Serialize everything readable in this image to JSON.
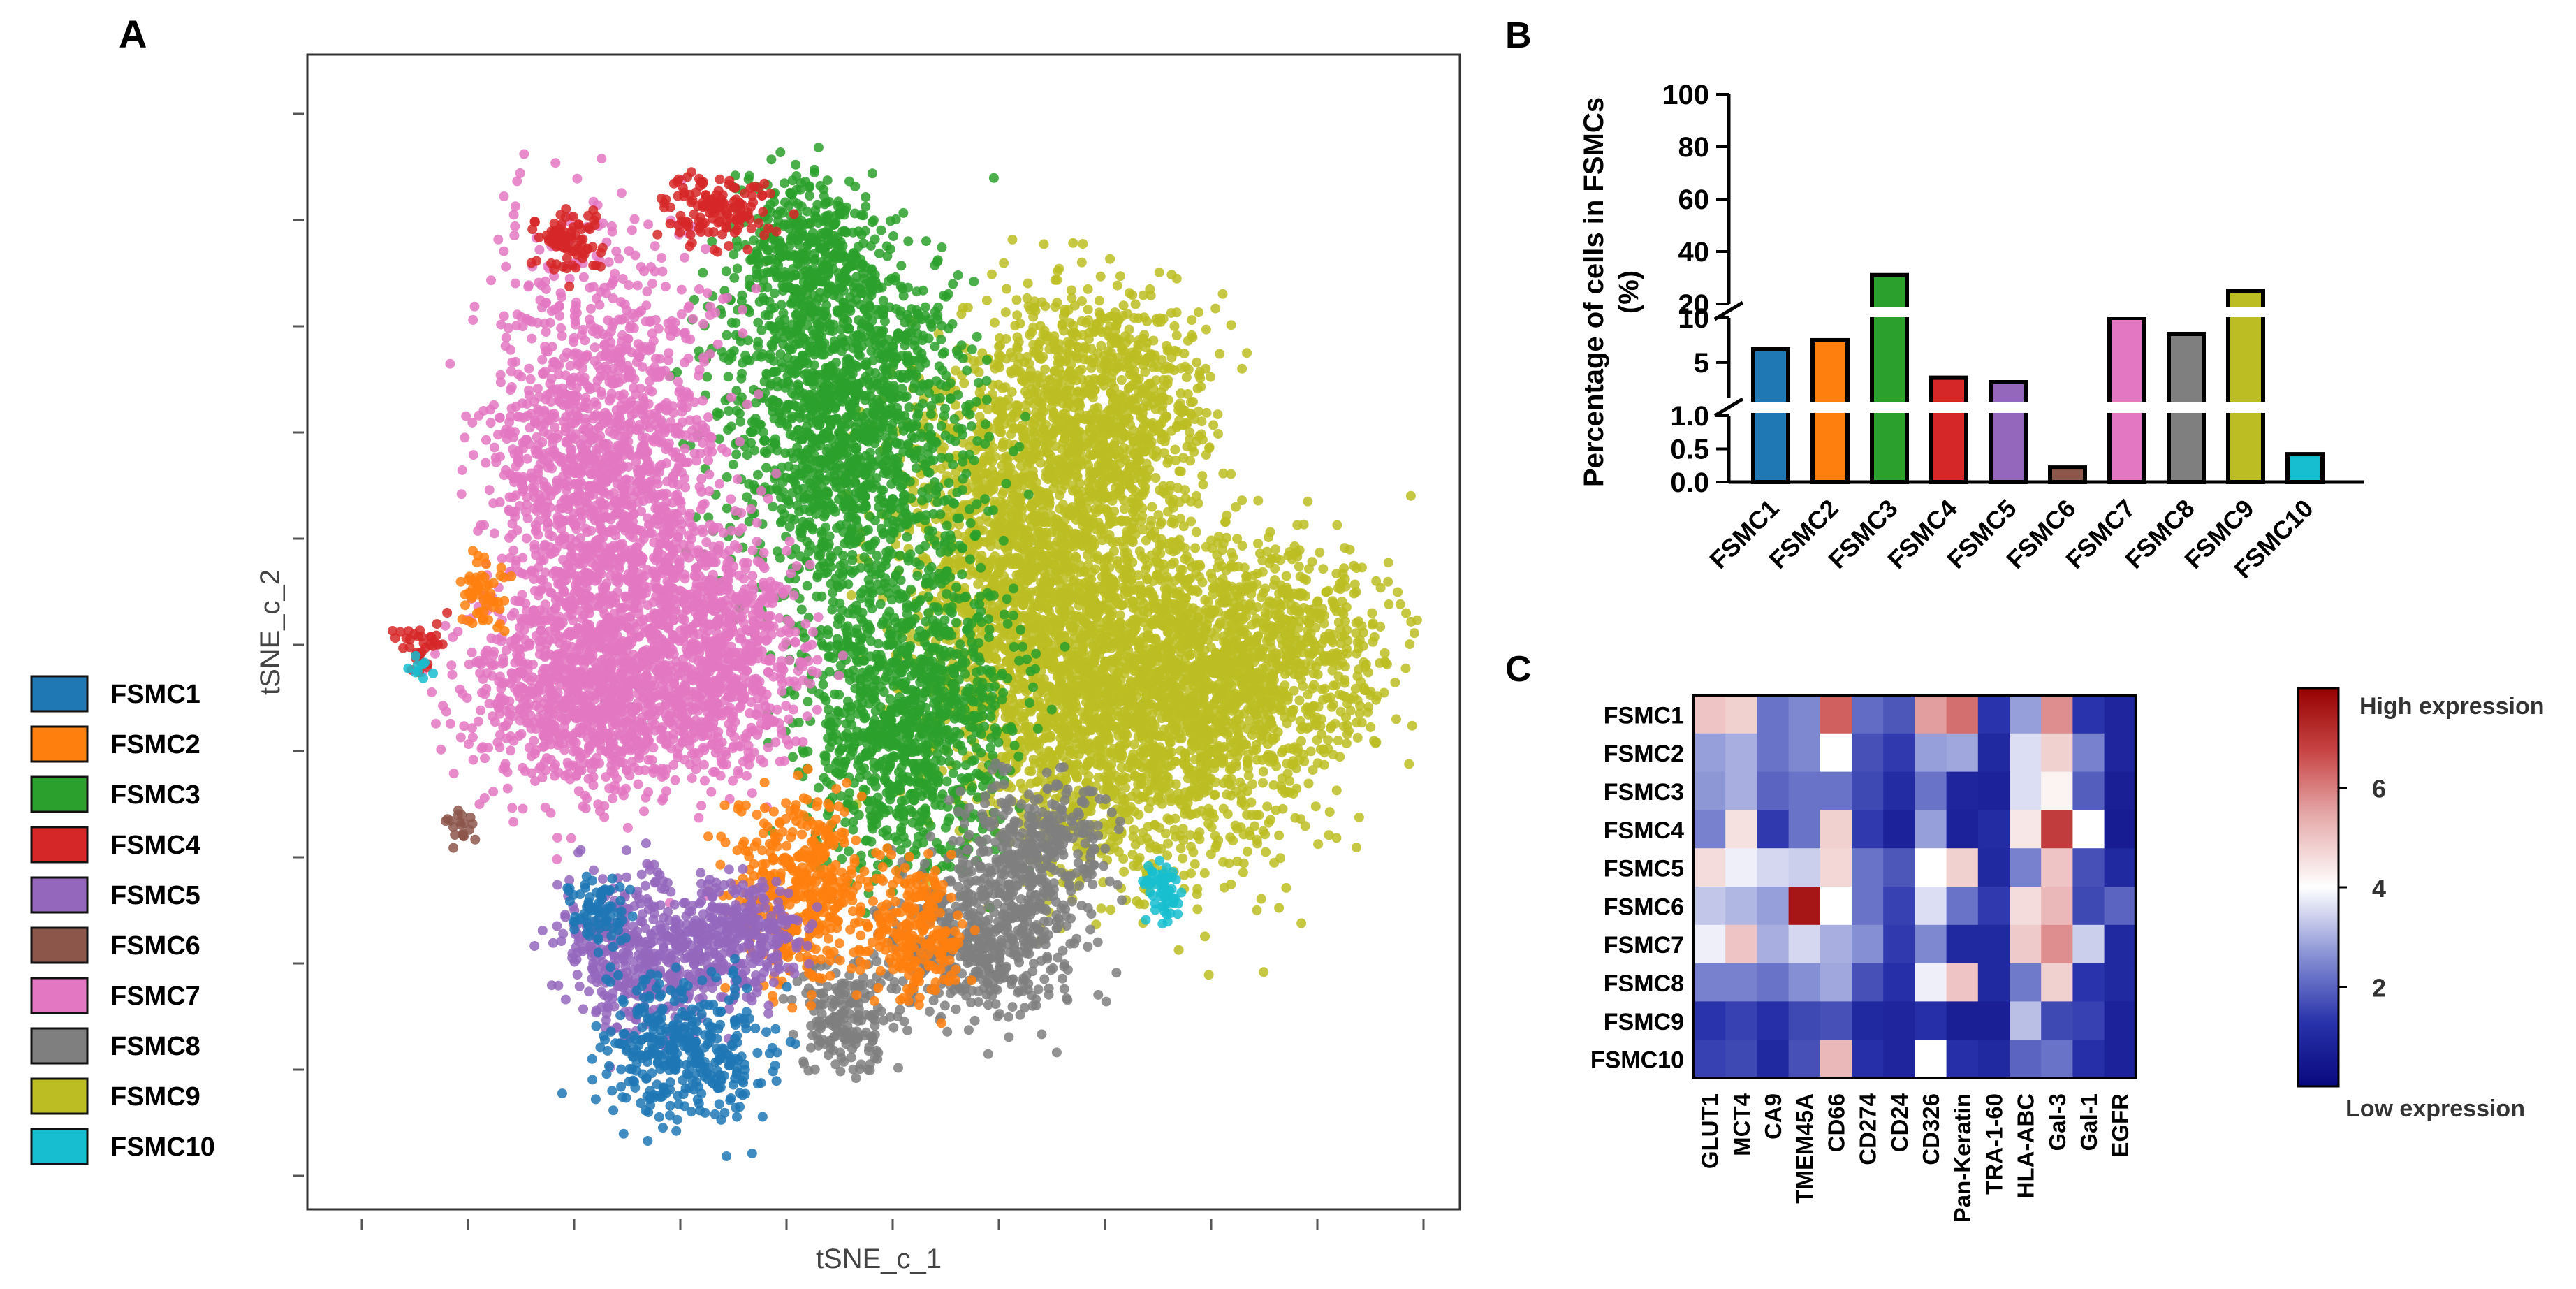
{
  "panels": {
    "a": {
      "letter": "A"
    },
    "b": {
      "letter": "B"
    },
    "c": {
      "letter": "C"
    }
  },
  "colors": {
    "FSMC1": "#1f77b4",
    "FSMC2": "#ff7f0e",
    "FSMC3": "#2ca02c",
    "FSMC4": "#d62728",
    "FSMC5": "#9467bd",
    "FSMC6": "#8c564b",
    "FSMC7": "#e377c2",
    "FSMC8": "#7f7f7f",
    "FSMC9": "#bcbd22",
    "FSMC10": "#17becf"
  },
  "chart_data": [
    {
      "panel": "A",
      "type": "scatter",
      "xlabel": "tSNE_c_1",
      "ylabel": "tSNE_c_2",
      "legend": [
        "FSMC1",
        "FSMC2",
        "FSMC3",
        "FSMC4",
        "FSMC5",
        "FSMC6",
        "FSMC7",
        "FSMC8",
        "FSMC9",
        "FSMC10"
      ],
      "legend_position": "left",
      "clusters": [
        {
          "name": "FSMC9",
          "regions": [
            [
              64,
              42,
              12,
              14,
              0.8
            ],
            [
              84,
              52,
              12,
              10,
              0.6
            ],
            [
              72,
              58,
              15,
              14,
              0.7
            ],
            [
              70,
              28,
              10,
              10,
              0.6
            ]
          ]
        },
        {
          "name": "FSMC3",
          "regions": [
            [
              46,
              30,
              11,
              15,
              0.5
            ],
            [
              52,
              58,
              9,
              14,
              0.6
            ],
            [
              43,
              14,
              6,
              7,
              0.6
            ]
          ]
        },
        {
          "name": "FSMC7",
          "regions": [
            [
              24,
              38,
              10,
              22,
              0.5
            ],
            [
              22,
              56,
              11,
              8,
              0.5
            ],
            [
              35,
              52,
              7,
              10,
              0.6
            ]
          ]
        },
        {
          "name": "FSMC4",
          "regions": [
            [
              34,
              10,
              5,
              3,
              0.2
            ],
            [
              20,
              13,
              3,
              3,
              0.3
            ],
            [
              6,
              51,
              2,
              2,
              0.3
            ]
          ]
        },
        {
          "name": "FSMC8",
          "regions": [
            [
              59,
              79,
              8,
              7,
              0.3
            ],
            [
              64,
              70,
              6,
              6,
              0.3
            ],
            [
              46,
              86,
              4,
              5,
              0.3
            ]
          ]
        },
        {
          "name": "FSMC2",
          "regions": [
            [
              42,
              74,
              6,
              8,
              0.4
            ],
            [
              12,
              46,
              2,
              3,
              0.3
            ],
            [
              53,
              78,
              4,
              6,
              0.3
            ]
          ]
        },
        {
          "name": "FSMC5",
          "regions": [
            [
              28,
              80,
              8,
              7,
              0.3
            ],
            [
              37,
              78,
              5,
              5,
              0.3
            ]
          ]
        },
        {
          "name": "FSMC1",
          "regions": [
            [
              31,
              89,
              7,
              6,
              0.3
            ],
            [
              23,
              76,
              3,
              3,
              0.3
            ]
          ]
        },
        {
          "name": "FSMC10",
          "regions": [
            [
              76,
              74,
              2,
              3,
              0.3
            ],
            [
              6,
              53,
              1,
              1,
              0
            ]
          ]
        },
        {
          "name": "FSMC6",
          "regions": [
            [
              10,
              68,
              1.5,
              1.5,
              0.4
            ]
          ]
        }
      ]
    },
    {
      "panel": "B",
      "type": "bar",
      "ylabel": "Percentage of cells in FSMCs (%)",
      "categories": [
        "FSMC1",
        "FSMC2",
        "FSMC3",
        "FSMC4",
        "FSMC5",
        "FSMC6",
        "FSMC7",
        "FSMC8",
        "FSMC9",
        "FSMC10"
      ],
      "values": [
        6.5,
        7.5,
        31,
        3.3,
        2.8,
        0.22,
        14,
        8.2,
        25,
        0.42
      ],
      "ylim": [
        0,
        100
      ],
      "axis_breaks": [
        1.0,
        20
      ],
      "yticks": [
        0.0,
        0.5,
        1.0,
        5,
        10,
        20,
        40,
        60,
        80,
        100
      ],
      "ytick_labels": [
        "0.0",
        "0.5",
        "1.0",
        "5",
        "10",
        "20",
        "40",
        "60",
        "80",
        "100"
      ]
    },
    {
      "panel": "C",
      "type": "heatmap",
      "rows": [
        "FSMC1",
        "FSMC2",
        "FSMC3",
        "FSMC4",
        "FSMC5",
        "FSMC6",
        "FSMC7",
        "FSMC8",
        "FSMC9",
        "FSMC10"
      ],
      "columns": [
        "GLUT1",
        "MCT4",
        "CA9",
        "TMEM45A",
        "CD66",
        "CD274",
        "CD24",
        "CD326",
        "Pan-Keratin",
        "TRA-1-60",
        "HLA-ABC",
        "Gal-3",
        "Gal-1",
        "EGFR"
      ],
      "values": [
        [
          5.0,
          4.8,
          2.2,
          2.5,
          6.4,
          2.1,
          1.8,
          5.6,
          6.2,
          1.3,
          2.8,
          5.8,
          1.3,
          0.9
        ],
        [
          2.8,
          3.0,
          2.2,
          2.5,
          4.0,
          1.7,
          1.4,
          2.8,
          2.9,
          1.0,
          3.6,
          4.8,
          2.4,
          0.9
        ],
        [
          2.7,
          3.0,
          2.0,
          2.2,
          2.2,
          1.6,
          1.1,
          2.2,
          0.9,
          0.8,
          3.6,
          4.2,
          1.9,
          0.7
        ],
        [
          2.4,
          4.5,
          1.4,
          2.2,
          4.8,
          1.4,
          0.8,
          2.8,
          0.8,
          1.1,
          4.4,
          6.9,
          4.0,
          0.6
        ],
        [
          4.6,
          3.8,
          3.5,
          3.4,
          4.7,
          2.2,
          1.8,
          4.0,
          4.8,
          1.0,
          2.4,
          5.0,
          1.7,
          1.0
        ],
        [
          3.3,
          3.1,
          2.8,
          7.6,
          4.0,
          2.2,
          1.5,
          3.6,
          2.2,
          1.4,
          4.6,
          5.2,
          1.6,
          2.0
        ],
        [
          3.8,
          5.0,
          3.0,
          3.5,
          3.0,
          2.6,
          1.4,
          2.5,
          1.0,
          1.0,
          4.9,
          5.8,
          3.4,
          1.0
        ],
        [
          2.4,
          2.4,
          2.2,
          2.6,
          2.9,
          1.7,
          1.2,
          3.8,
          5.0,
          1.0,
          2.3,
          4.8,
          1.3,
          1.0
        ],
        [
          1.3,
          1.5,
          1.2,
          1.6,
          1.7,
          1.0,
          0.9,
          1.2,
          0.7,
          0.7,
          3.2,
          1.6,
          1.5,
          0.8
        ],
        [
          1.5,
          1.6,
          1.0,
          1.7,
          5.2,
          1.2,
          0.9,
          4.0,
          1.2,
          1.0,
          2.0,
          2.2,
          1.2,
          0.8
        ]
      ],
      "colorbar": {
        "min": 0,
        "max": 8,
        "ticks": [
          2,
          4,
          6
        ],
        "high_label": "High expression",
        "low_label": "Low expression"
      }
    }
  ]
}
